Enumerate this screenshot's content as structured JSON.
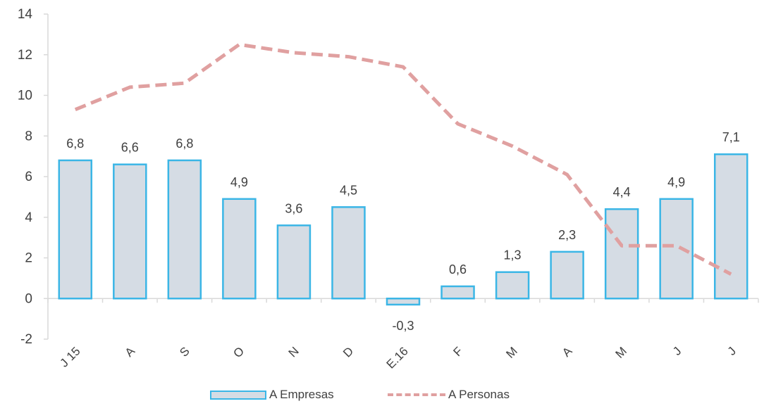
{
  "chart_data": {
    "type": "bar",
    "categories": [
      "J 15",
      "A",
      "S",
      "O",
      "N",
      "D",
      "E.16",
      "F",
      "M",
      "A",
      "M",
      "J",
      "J"
    ],
    "series": [
      {
        "name": "A Empresas",
        "kind": "bar",
        "values": [
          6.8,
          6.6,
          6.8,
          4.9,
          3.6,
          4.5,
          -0.3,
          0.6,
          1.3,
          2.3,
          4.4,
          4.9,
          7.1
        ],
        "labels": [
          "6,8",
          "6,6",
          "6,8",
          "4,9",
          "3,6",
          "4,5",
          "-0,3",
          "0,6",
          "1,3",
          "2,3",
          "4,4",
          "4,9",
          "7,1"
        ],
        "color": "#3bb6e6",
        "fill": "#d5dce4"
      },
      {
        "name": "A Personas",
        "kind": "line",
        "style": "dashed",
        "values": [
          9.3,
          10.4,
          10.6,
          12.5,
          12.1,
          11.9,
          11.4,
          8.6,
          7.5,
          6.1,
          2.6,
          2.6,
          1.2
        ],
        "color": "#e0a0a0"
      }
    ],
    "ylim": [
      -2,
      14
    ],
    "yticks": [
      -2,
      0,
      2,
      4,
      6,
      8,
      10,
      12,
      14
    ],
    "ytick_labels": [
      "-2",
      "0",
      "2",
      "4",
      "6",
      "8",
      "10",
      "12",
      "14"
    ],
    "grid": false,
    "legend_position": "bottom"
  }
}
